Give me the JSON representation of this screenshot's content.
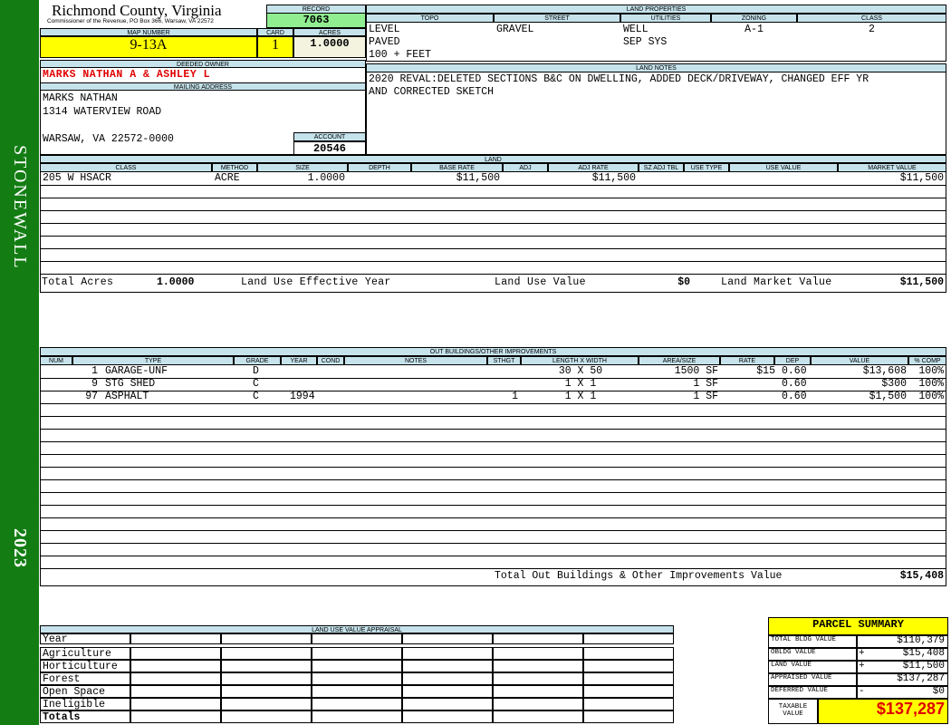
{
  "sidebar": {
    "district": "STONEWALL",
    "year": "2023"
  },
  "header": {
    "county": "Richmond County, Virginia",
    "address": "Commissioner of the Revenue, PO Box 366, Warsaw, VA 22572"
  },
  "record": {
    "label": "RECORD",
    "value": "7063"
  },
  "map_number": {
    "label": "MAP NUMBER",
    "value": "9-13A"
  },
  "card": {
    "label": "CARD",
    "value": "1"
  },
  "acres": {
    "label": "ACRES",
    "value": "1.0000"
  },
  "land_properties": {
    "title": "LAND PROPERTIES",
    "columns": [
      "TOPO",
      "STREET",
      "UTILITIES",
      "ZONING",
      "CLASS"
    ],
    "rows": [
      [
        "LEVEL",
        "GRAVEL",
        "WELL",
        "A-1",
        "2"
      ],
      [
        "PAVED",
        null,
        "SEP SYS",
        null,
        null
      ],
      [
        "100 + FEET",
        null,
        null,
        null,
        null
      ]
    ]
  },
  "deeded_owner": {
    "label": "DEEDED OWNER",
    "value": "MARKS NATHAN A & ASHLEY L"
  },
  "mailing_address": {
    "label": "MAILING ADDRESS",
    "lines": [
      "MARKS NATHAN",
      "1314 WATERVIEW ROAD",
      "WARSAW, VA 22572-0000"
    ]
  },
  "account": {
    "label": "ACCOUNT",
    "value": "20546"
  },
  "land_notes": {
    "title": "LAND NOTES",
    "lines": [
      "2020 REVAL:DELETED SECTIONS B&C ON DWELLING, ADDED DECK/DRIVEWAY, CHANGED EFF YR",
      "AND CORRECTED SKETCH"
    ]
  },
  "land": {
    "title": "LAND",
    "columns": [
      "CLASS",
      "METHOD",
      "SIZE",
      "DEPTH",
      "BASE RATE",
      "ADJ",
      "ADJ RATE",
      "SZ ADJ TBL",
      "USE TYPE",
      "USE VALUE",
      "MARKET VALUE"
    ],
    "rows": [
      [
        "205 W HSACR",
        "ACRE",
        "1.0000",
        null,
        "$11,500",
        null,
        "$11,500",
        null,
        null,
        null,
        "$11,500"
      ]
    ],
    "totals": [
      {
        "label": "Total Acres",
        "value": "1.0000"
      },
      {
        "label": "Land Use Effective Year"
      },
      {
        "label": "Land Use Value",
        "value": "$0"
      },
      {
        "label": "Land Market Value",
        "value": "$11,500"
      }
    ]
  },
  "out_buildings": {
    "title": "OUT BUILDINGS/OTHER IMPROVEMENTS",
    "columns": [
      "NUM",
      "TYPE",
      "GRADE",
      "YEAR",
      "COND",
      "NOTES",
      "STHGT",
      "LENGTH X WIDTH",
      "AREA/SIZE",
      "RATE",
      "DEP",
      "VALUE",
      "% COMP"
    ],
    "rows": [
      [
        "1",
        "GARAGE-UNF",
        "D",
        null,
        null,
        null,
        null,
        "30 X 50",
        "1500 SF",
        "$15",
        "0.60",
        "$13,608",
        "100%"
      ],
      [
        "9",
        "STG SHED",
        "C",
        null,
        null,
        null,
        null,
        "1 X 1",
        "1 SF",
        null,
        "0.60",
        "$300",
        "100%"
      ],
      [
        "97",
        "ASPHALT",
        "C",
        "1994",
        null,
        null,
        "1",
        "1 X 1",
        "1 SF",
        null,
        "0.60",
        "$1,500",
        "100%"
      ]
    ],
    "total": {
      "label": "Total Out Buildings & Other Improvements Value",
      "value": "$15,408"
    }
  },
  "land_use_appraisal": {
    "title": "LAND USE VALUE APPRAISAL",
    "rows": [
      "Year",
      "Agriculture",
      "Horticulture",
      "Forest",
      "Open Space",
      "Ineligible",
      "Totals"
    ]
  },
  "parcel_summary": {
    "title": "PARCEL SUMMARY",
    "rows": [
      {
        "label": "TOTAL BLDG VALUE",
        "value": "$110,379"
      },
      {
        "label": "OBLDG VALUE",
        "sign": "+",
        "value": "$15,408"
      },
      {
        "label": "LAND VALUE",
        "sign": "+",
        "value": "$11,500"
      },
      {
        "label": "APPRAISED VALUE",
        "value": "$137,287"
      },
      {
        "label": "DEFERRED VALUE",
        "sign": "-",
        "value": "$0"
      }
    ],
    "taxable": {
      "label": "TAXABLE VALUE",
      "value": "$137,287"
    }
  }
}
